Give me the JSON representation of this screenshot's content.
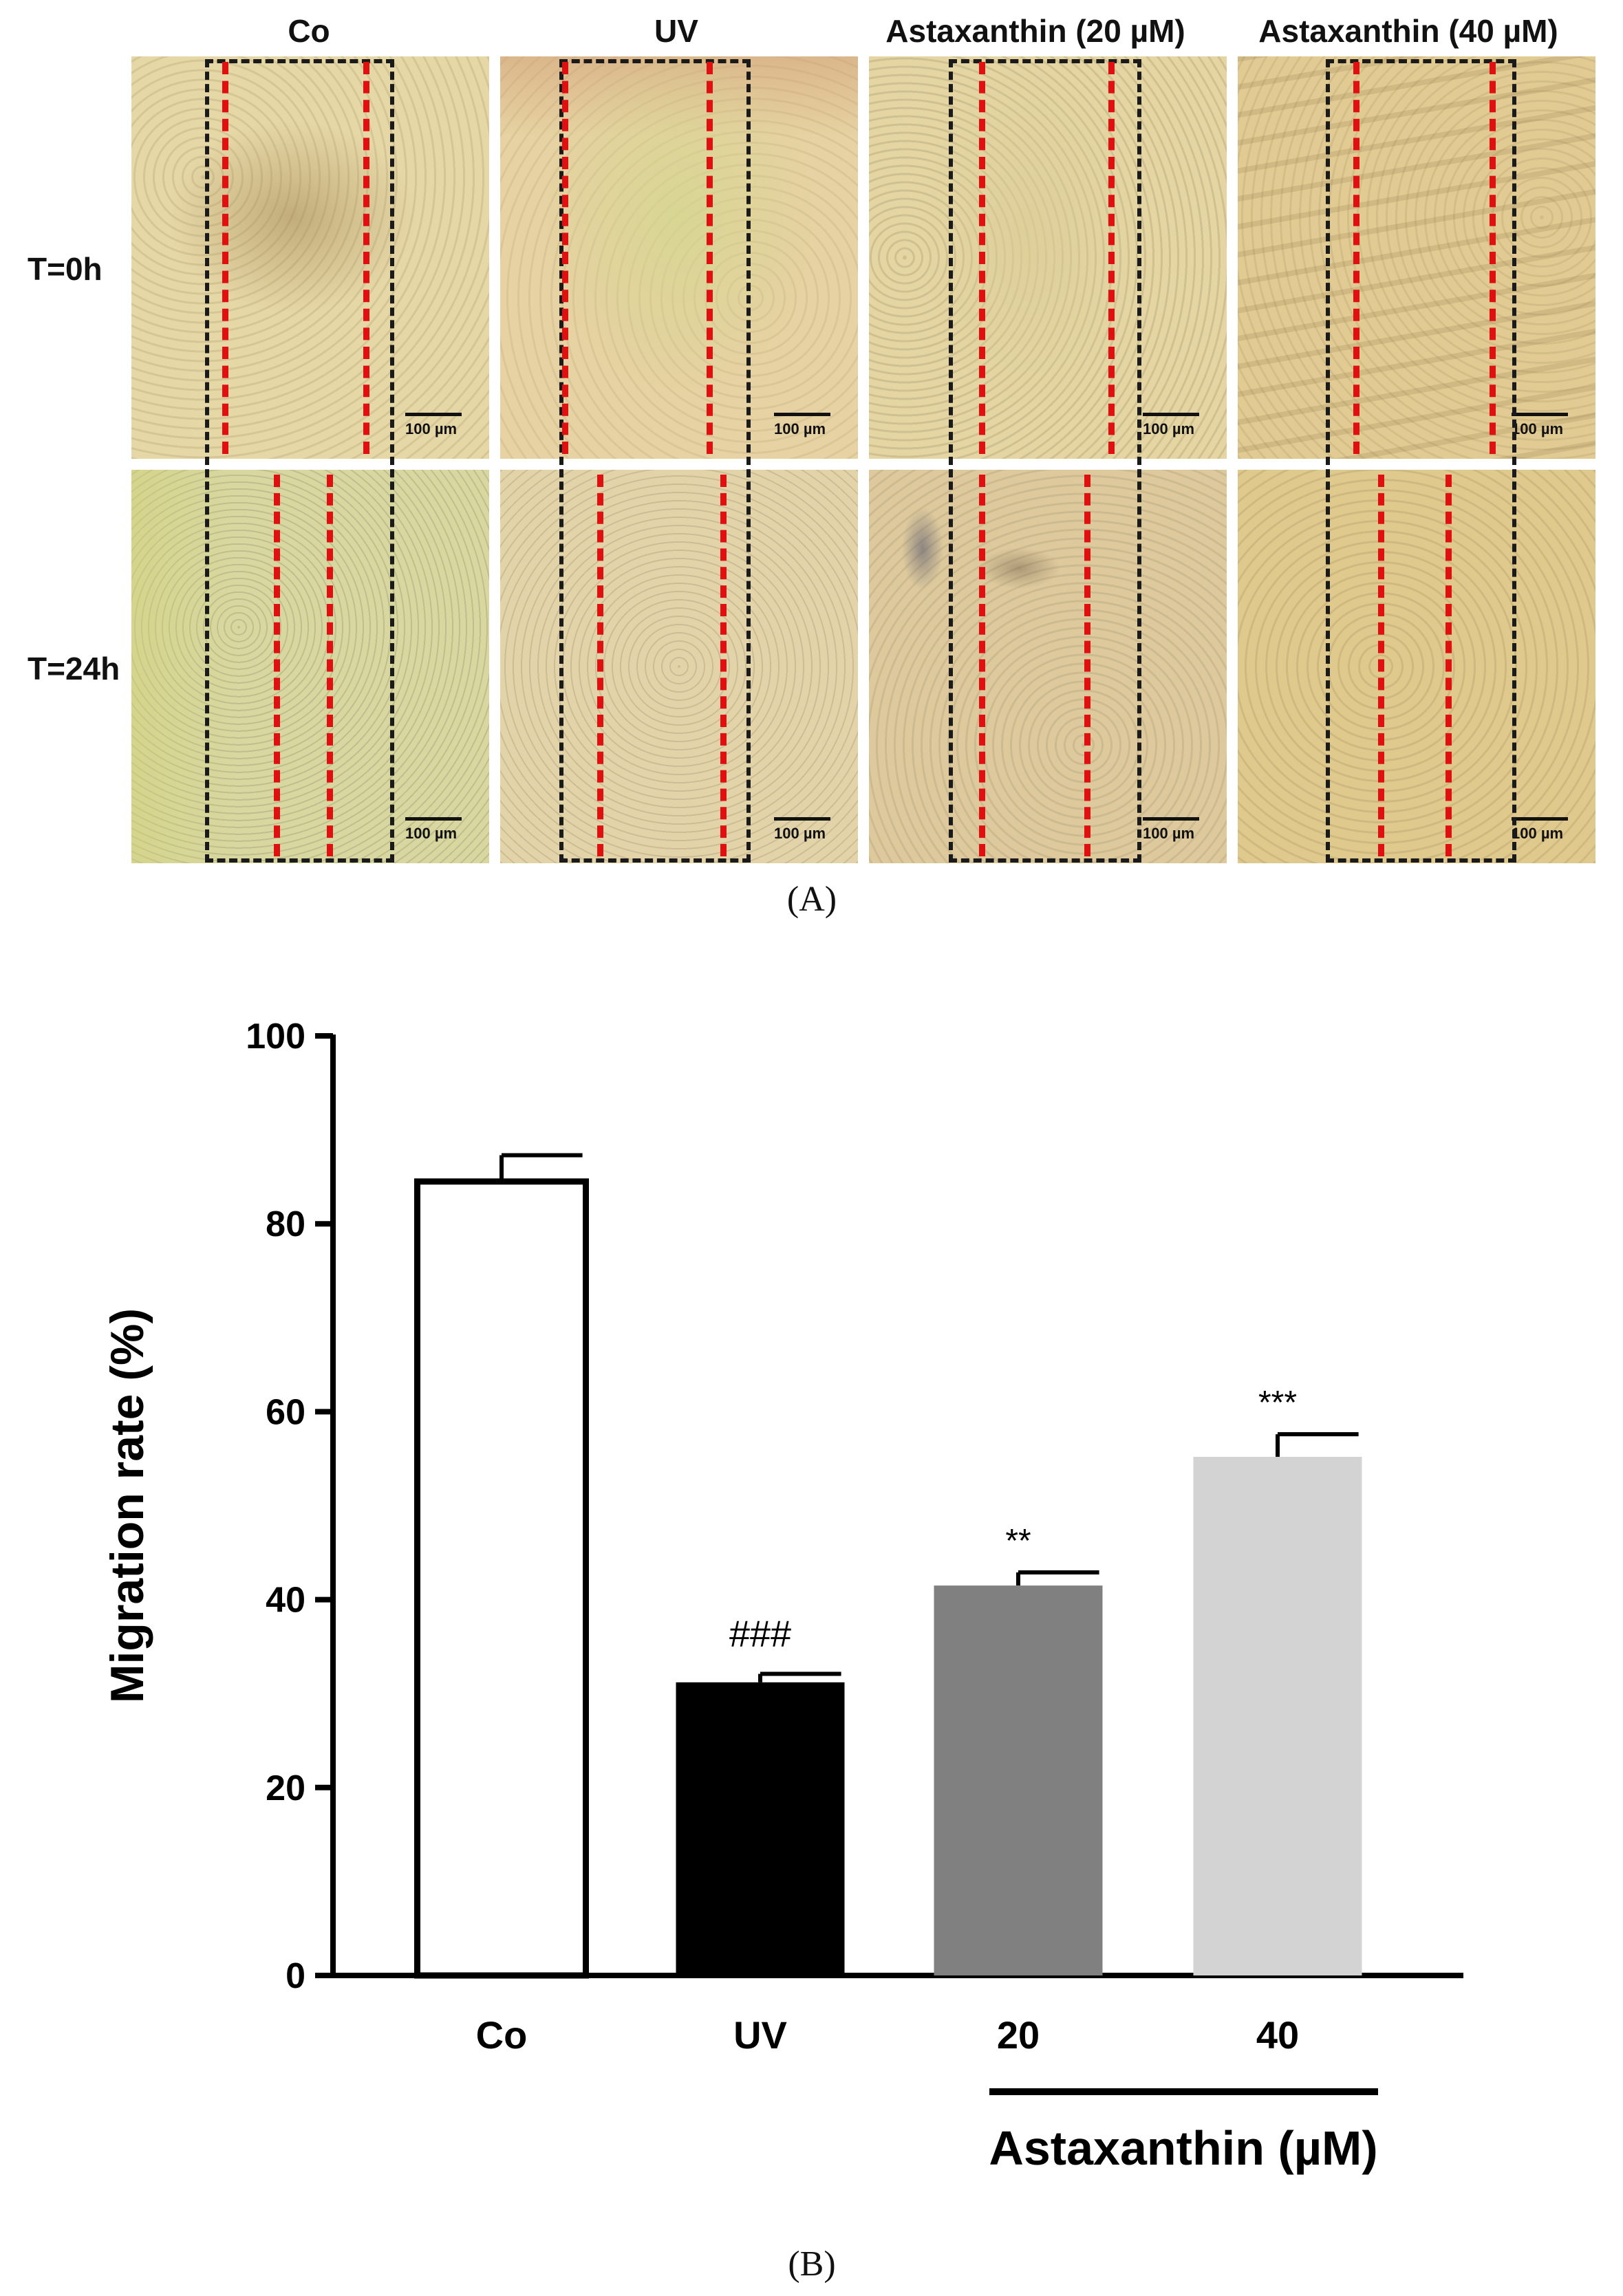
{
  "panel_a": {
    "columns": [
      "Co",
      "UV",
      "Astaxanthin (20 µM)",
      "Astaxanthin (40 µM)"
    ],
    "rows": [
      "T=0h",
      "T=24h"
    ],
    "scale_bar_label": "100 µm",
    "caption": "(A)",
    "colors": {
      "wound_line": "#e01010",
      "box": "#1a1a1a"
    }
  },
  "panel_b": {
    "caption": "(B)"
  },
  "chart_data": {
    "type": "bar",
    "title": "",
    "xlabel": "",
    "ylabel": "Migration rate (%)",
    "ylim": [
      0,
      100
    ],
    "yticks": [
      0,
      20,
      40,
      60,
      80,
      100
    ],
    "categories": [
      "Co",
      "UV",
      "20",
      "40"
    ],
    "values": [
      84.5,
      31.2,
      41.5,
      55.2
    ],
    "errors": [
      2.8,
      0.9,
      1.4,
      2.4
    ],
    "significance": [
      "",
      "###",
      "**",
      "***"
    ],
    "bar_colors": [
      "#ffffff",
      "#000000",
      "#808080",
      "#d3d3d3"
    ],
    "group_label": "Astaxanthin (µM)",
    "group_categories": [
      "20",
      "40"
    ]
  }
}
